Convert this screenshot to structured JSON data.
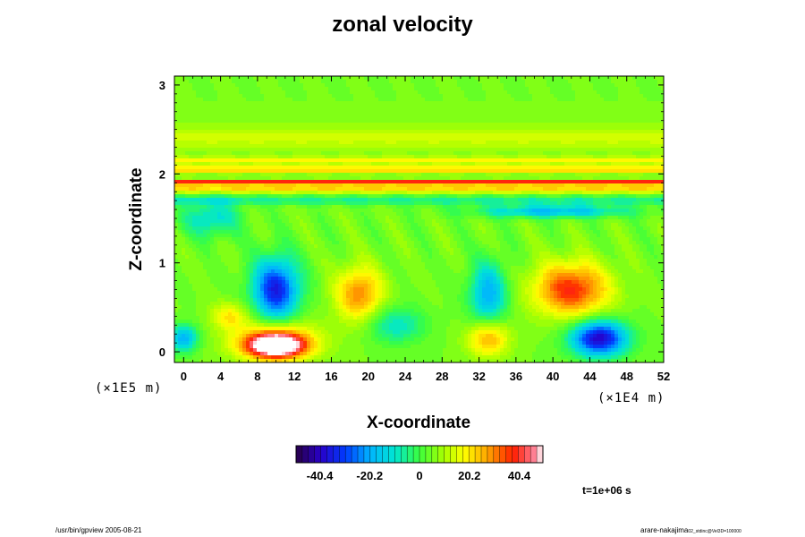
{
  "chart_data": {
    "type": "heatmap",
    "title": "zonal velocity",
    "xlabel": "X-coordinate",
    "ylabel": "Z-coordinate",
    "x_unit": "(×1E4 m)",
    "y_unit": "(×1E5 m)",
    "xlim": [
      -1,
      52
    ],
    "ylim": [
      -0.12,
      3.1
    ],
    "x_ticks": [
      "0",
      "4",
      "8",
      "12",
      "16",
      "20",
      "24",
      "28",
      "32",
      "36",
      "40",
      "44",
      "48",
      "52"
    ],
    "y_ticks": [
      "0",
      "1",
      "2",
      "3"
    ],
    "x_tick_values": [
      0,
      4,
      8,
      12,
      16,
      20,
      24,
      28,
      32,
      36,
      40,
      44,
      48,
      52
    ],
    "y_tick_values": [
      0,
      1,
      2,
      3
    ],
    "colorbar": {
      "min": -50,
      "max": 50,
      "tick_labels": [
        "-40.4",
        "-20.2",
        "0",
        "20.2",
        "40.4"
      ],
      "tick_values": [
        -40.4,
        -20.2,
        0,
        20.2,
        40.4
      ]
    },
    "background_value": 5,
    "bands": [
      {
        "z": 2.4,
        "width": 0.15,
        "value": 9
      },
      {
        "z": 2.15,
        "width": 0.04,
        "value": 15
      },
      {
        "z": 2.05,
        "width": 0.04,
        "value": 22
      },
      {
        "z": 1.9,
        "width": 0.03,
        "value": 45
      },
      {
        "z": 1.82,
        "width": 0.03,
        "value": 22
      },
      {
        "z": 1.7,
        "width": 0.05,
        "value": -12
      }
    ],
    "blobs": [
      {
        "x": 10,
        "z": 0.07,
        "rx": 3,
        "ry": 0.13,
        "value": 55
      },
      {
        "x": 10,
        "z": 0.12,
        "rx": 4.5,
        "ry": 0.22,
        "value": 30
      },
      {
        "x": 10,
        "z": 0.7,
        "rx": 2.5,
        "ry": 0.35,
        "value": -35
      },
      {
        "x": 19,
        "z": 0.65,
        "rx": 2.5,
        "ry": 0.3,
        "value": 30
      },
      {
        "x": 33,
        "z": 0.65,
        "rx": 2,
        "ry": 0.35,
        "value": -20
      },
      {
        "x": 42,
        "z": 0.7,
        "rx": 4,
        "ry": 0.3,
        "value": 38
      },
      {
        "x": 45,
        "z": 0.15,
        "rx": 3,
        "ry": 0.2,
        "value": -40
      },
      {
        "x": 33,
        "z": 0.15,
        "rx": 2.2,
        "ry": 0.2,
        "value": 28
      },
      {
        "x": 23,
        "z": 0.3,
        "rx": 3,
        "ry": 0.2,
        "value": -10
      },
      {
        "x": 5,
        "z": 0.4,
        "rx": 2,
        "ry": 0.15,
        "value": 20
      },
      {
        "x": 0,
        "z": 0.15,
        "rx": 1.5,
        "ry": 0.15,
        "value": -20
      },
      {
        "x": 3,
        "z": 1.5,
        "rx": 3,
        "ry": 0.2,
        "value": -12
      },
      {
        "x": 40,
        "z": 1.58,
        "rx": 8,
        "ry": 0.07,
        "value": -18
      }
    ],
    "grid": false
  },
  "time_label": "t=1e+06 s",
  "footer": {
    "left": "/usr/bin/gpview 2005-08-21",
    "right_main": "arare-nakajima",
    "right_sub": "02_stdinc@Vel3D=100000"
  }
}
